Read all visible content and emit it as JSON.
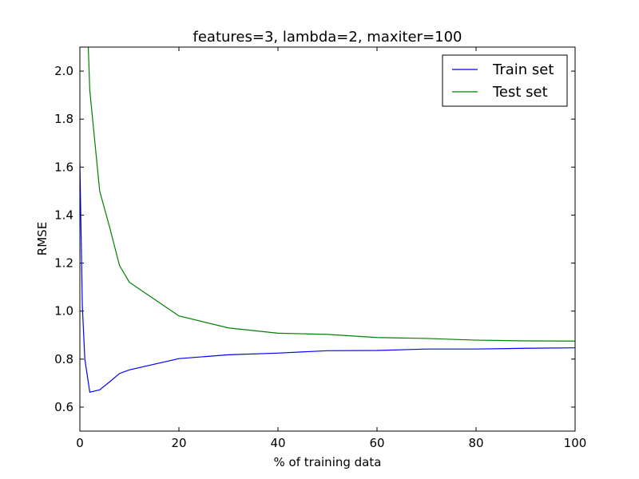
{
  "chart_data": {
    "type": "line",
    "title": "features=3, lambda=2, maxiter=100",
    "xlabel": "% of training data",
    "ylabel": "RMSE",
    "xlim": [
      0,
      100
    ],
    "ylim": [
      0.5,
      2.1
    ],
    "xticks": [
      0,
      20,
      40,
      60,
      80,
      100
    ],
    "yticks": [
      0.6,
      0.8,
      1.0,
      1.2,
      1.4,
      1.6,
      1.8,
      2.0
    ],
    "xtick_labels": [
      "0",
      "20",
      "40",
      "60",
      "80",
      "100"
    ],
    "ytick_labels": [
      "0.6",
      "0.8",
      "1.0",
      "1.2",
      "1.4",
      "1.6",
      "1.8",
      "2.0"
    ],
    "grid": false,
    "legend_position": "top-right",
    "series": [
      {
        "name": "Train set",
        "color": "#0000ff",
        "x": [
          0,
          0.5,
          1,
          2,
          4,
          6,
          8,
          10,
          20,
          30,
          40,
          50,
          60,
          70,
          80,
          90,
          100
        ],
        "y": [
          1.62,
          1.02,
          0.8,
          0.662,
          0.672,
          0.705,
          0.74,
          0.755,
          0.802,
          0.818,
          0.825,
          0.835,
          0.836,
          0.842,
          0.842,
          0.845,
          0.847
        ]
      },
      {
        "name": "Test set",
        "color": "#008000",
        "x": [
          1.7,
          2,
          4,
          6,
          8,
          10,
          20,
          30,
          40,
          50,
          60,
          70,
          80,
          90,
          100
        ],
        "y": [
          2.1,
          1.92,
          1.5,
          1.35,
          1.19,
          1.12,
          0.98,
          0.93,
          0.908,
          0.903,
          0.89,
          0.886,
          0.879,
          0.876,
          0.875
        ]
      }
    ]
  }
}
